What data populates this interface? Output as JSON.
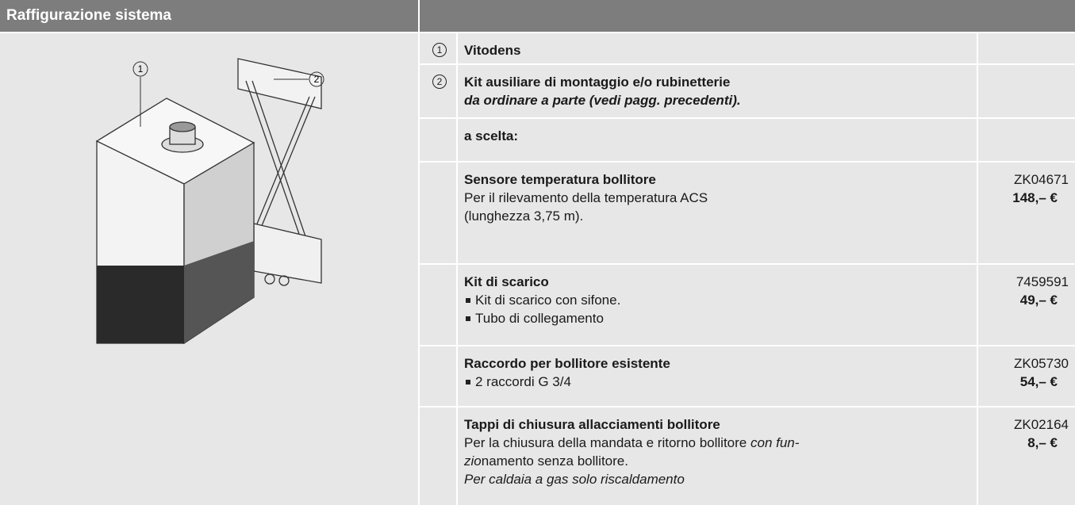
{
  "header": {
    "title": "Raffigurazione sistema"
  },
  "figure": {
    "callouts": [
      "1",
      "2"
    ]
  },
  "table": {
    "rows": [
      {
        "marker": "1",
        "title": "Vitodens"
      },
      {
        "marker": "2",
        "title": "Kit ausiliare di montaggio e/o rubinetterie",
        "subtitle": "da ordinare a parte (vedi pagg. precedenti)."
      },
      {
        "title": "a scelta:"
      },
      {
        "title": "Sensore temperatura bollitore",
        "lines": [
          [
            {
              "text": "Per il rilevamento della temperatura ACS"
            }
          ],
          [
            {
              "text": "(lunghezza 3,75 m)."
            }
          ]
        ],
        "code": "ZK04671",
        "price": "148,– €"
      },
      {
        "title": "Kit di scarico",
        "items": [
          "Kit di scarico con sifone.",
          "Tubo di collegamento"
        ],
        "code": "7459591",
        "price": "49,– €"
      },
      {
        "title": "Raccordo per bollitore esistente",
        "items": [
          "2 raccordi G 3/4"
        ],
        "code": "ZK05730",
        "price": "54,– €"
      },
      {
        "title": "Tappi di chiusura allacciamenti bollitore",
        "lines": [
          [
            {
              "text": "Per la chiusura della mandata e ritorno bollitore  "
            },
            {
              "em": "con fun-"
            }
          ],
          [
            {
              "em": "zio"
            },
            {
              "text": "namento senza bollitore."
            }
          ],
          [
            {
              "em": "Per caldaia a gas solo riscaldamento"
            }
          ]
        ],
        "code": "ZK02164",
        "price": "8,– €"
      }
    ]
  }
}
